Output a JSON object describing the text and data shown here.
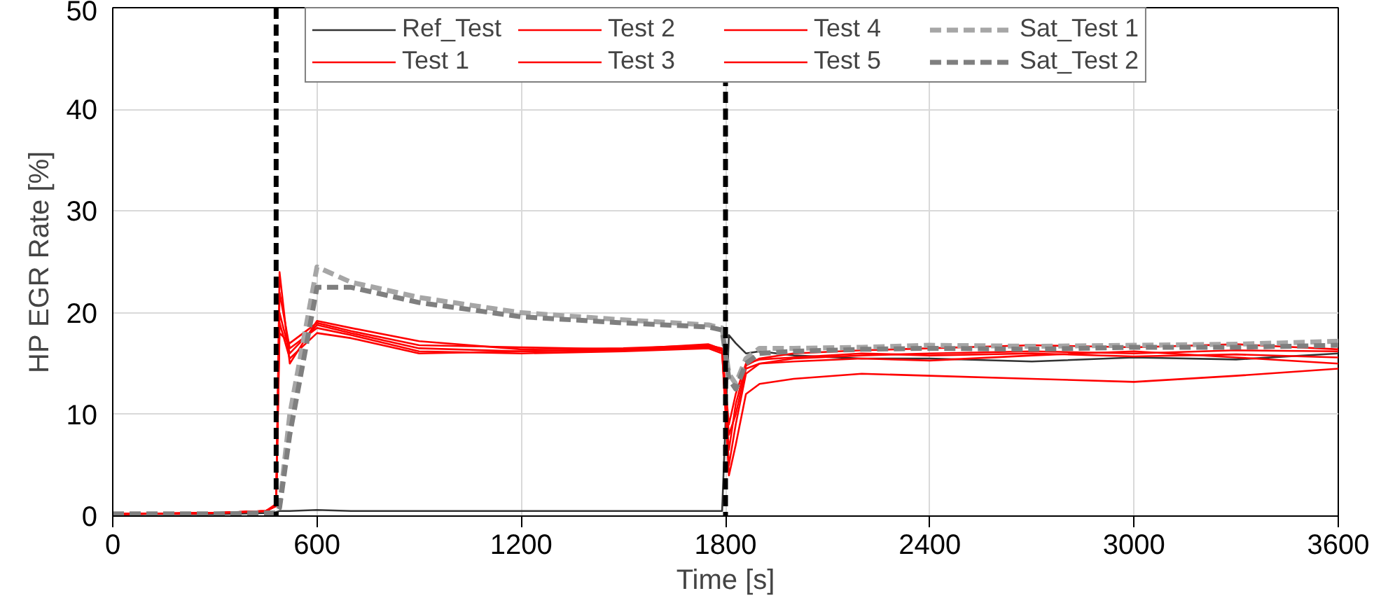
{
  "chart_data": {
    "type": "line",
    "xlabel": "Time [s]",
    "ylabel": "HP EGR Rate [%]",
    "xlim": [
      0,
      3600
    ],
    "ylim": [
      0,
      50
    ],
    "xticks": [
      0,
      600,
      1200,
      1800,
      2400,
      3000,
      3600
    ],
    "yticks": [
      0,
      10,
      20,
      30,
      40,
      50
    ],
    "grid": true,
    "legend": "top",
    "line_style": "solid",
    "marker": "none",
    "x": [
      0,
      300,
      450,
      480,
      490,
      520,
      600,
      700,
      900,
      1200,
      1500,
      1750,
      1790,
      1810,
      1830,
      1860,
      1900,
      2000,
      2200,
      2400,
      2700,
      3000,
      3300,
      3600
    ],
    "series": [
      {
        "name": "Ref_Test",
        "color": "#333333",
        "values": [
          0.2,
          0.2,
          0.3,
          0.4,
          0.5,
          0.5,
          0.6,
          0.5,
          0.5,
          0.5,
          0.5,
          0.5,
          0.5,
          17.8,
          17.0,
          16.0,
          16.2,
          15.8,
          15.5,
          15.5,
          15.2,
          15.6,
          15.4,
          16.0
        ]
      },
      {
        "name": "Test 1",
        "color": "#ff0000",
        "values": [
          0.2,
          0.3,
          0.5,
          1.2,
          24.0,
          15.0,
          19.2,
          18.5,
          17.2,
          16.4,
          16.5,
          16.8,
          16.5,
          5.0,
          9.0,
          14.0,
          15.0,
          15.5,
          15.8,
          16.0,
          16.2,
          16.0,
          16.3,
          16.2
        ]
      },
      {
        "name": "Test 2",
        "color": "#ff0000",
        "values": [
          0.2,
          0.3,
          0.5,
          1.0,
          20.0,
          16.0,
          18.8,
          18.0,
          16.5,
          16.2,
          16.3,
          16.6,
          16.2,
          4.0,
          7.0,
          12.0,
          13.0,
          13.5,
          14.0,
          13.8,
          13.5,
          13.2,
          13.8,
          14.5
        ]
      },
      {
        "name": "Test 3",
        "color": "#ff0000",
        "values": [
          0.2,
          0.3,
          0.5,
          1.0,
          18.0,
          17.0,
          19.0,
          18.2,
          16.8,
          16.6,
          16.4,
          16.9,
          16.4,
          8.0,
          10.0,
          14.5,
          15.0,
          15.2,
          15.5,
          15.3,
          15.8,
          16.2,
          15.6,
          15.0
        ]
      },
      {
        "name": "Test 4",
        "color": "#ff0000",
        "values": [
          0.2,
          0.3,
          0.5,
          1.1,
          22.0,
          16.5,
          18.5,
          17.8,
          16.2,
          16.0,
          16.2,
          16.5,
          16.0,
          6.5,
          11.0,
          14.8,
          15.5,
          16.0,
          16.3,
          16.5,
          16.8,
          16.6,
          16.9,
          16.4
        ]
      },
      {
        "name": "Test 5",
        "color": "#ff0000",
        "values": [
          0.2,
          0.3,
          0.5,
          1.0,
          19.0,
          15.5,
          18.0,
          17.5,
          16.0,
          16.2,
          16.4,
          16.7,
          16.3,
          9.0,
          12.0,
          15.0,
          15.4,
          15.6,
          16.0,
          15.8,
          16.0,
          15.7,
          15.9,
          15.6
        ]
      },
      {
        "name": "Sat_Test 1",
        "color": "#a6a6a6",
        "line_style": "dashed",
        "values": [
          0.2,
          0.2,
          0.3,
          0.3,
          1.0,
          10.0,
          24.5,
          23.0,
          21.5,
          20.0,
          19.3,
          18.8,
          18.5,
          14.0,
          13.0,
          15.5,
          16.5,
          16.5,
          16.6,
          16.8,
          16.7,
          16.8,
          16.9,
          17.2
        ]
      },
      {
        "name": "Sat_Test 2",
        "color": "#7f7f7f",
        "line_style": "dashed",
        "values": [
          0.2,
          0.2,
          0.3,
          0.3,
          0.8,
          8.0,
          22.5,
          22.5,
          21.0,
          19.6,
          19.0,
          18.6,
          18.3,
          13.5,
          12.5,
          15.0,
          16.0,
          16.2,
          16.4,
          16.5,
          16.4,
          16.6,
          16.6,
          16.8
        ]
      }
    ],
    "ref_lines": [
      {
        "axis": "x",
        "value": 480,
        "color": "#000000",
        "line_style": "dashed"
      },
      {
        "axis": "x",
        "value": 1800,
        "color": "#000000",
        "line_style": "dashed"
      }
    ]
  }
}
